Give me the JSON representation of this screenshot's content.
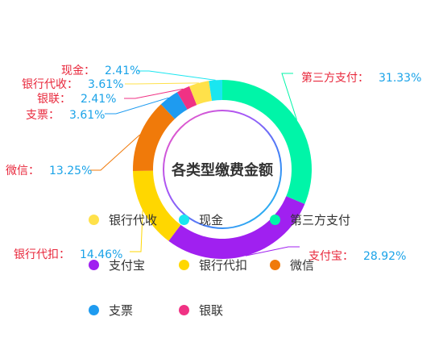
{
  "chart_data": {
    "type": "pie",
    "variant": "donut",
    "title": "各类型缴费金额",
    "slices": [
      {
        "name": "第三方支付",
        "value": 31.33,
        "label": "31.33%",
        "color": "#00F5A8"
      },
      {
        "name": "支付宝",
        "value": 28.92,
        "label": "28.92%",
        "color": "#A020F0"
      },
      {
        "name": "银行代扣",
        "value": 14.46,
        "label": "14.46%",
        "color": "#FFD700"
      },
      {
        "name": "微信",
        "value": 13.25,
        "label": "13.25%",
        "color": "#F07A0A"
      },
      {
        "name": "支票",
        "value": 3.61,
        "label": "3.61%",
        "color": "#1E9BF0"
      },
      {
        "name": "银联",
        "value": 2.41,
        "label": "2.41%",
        "color": "#F03284"
      },
      {
        "name": "银行代收",
        "value": 3.61,
        "label": "3.61%",
        "color": "#FFE14A"
      },
      {
        "name": "现金",
        "value": 2.41,
        "label": "2.41%",
        "color": "#1AE6F0"
      }
    ],
    "label_name_suffix": "：",
    "label_name_color": "#E8283C",
    "label_value_color": "#1AA3E8",
    "legend": {
      "rows": [
        [
          "银行代收",
          "现金",
          "第三方支付"
        ],
        [
          "支付宝",
          "银行代扣",
          "微信"
        ],
        [
          "支票",
          "银联"
        ]
      ]
    }
  }
}
